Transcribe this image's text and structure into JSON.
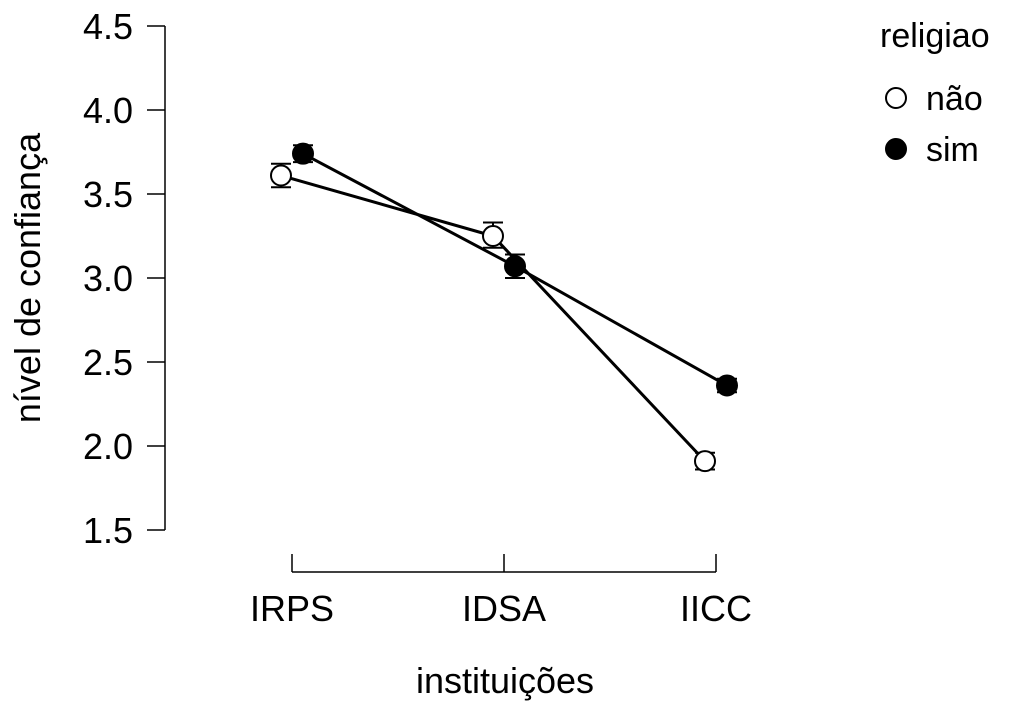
{
  "chart_data": {
    "type": "line",
    "xlabel": "instituições",
    "ylabel": "nível de confiança",
    "categories": [
      "IRPS",
      "IDSA",
      "IICC"
    ],
    "ylim": [
      1.5,
      4.5
    ],
    "yticks": [
      "1.5",
      "2.0",
      "2.5",
      "3.0",
      "3.5",
      "4.0",
      "4.5"
    ],
    "grid": false,
    "legend": {
      "title": "religiao",
      "placement": "top-right"
    },
    "series": [
      {
        "name": "não",
        "marker": "open-circle",
        "fill": "#ffffff",
        "values": [
          3.61,
          3.25,
          1.91
        ],
        "error_low": [
          3.54,
          3.18,
          1.86
        ],
        "error_high": [
          3.68,
          3.33,
          1.96
        ]
      },
      {
        "name": "sim",
        "marker": "filled-circle",
        "fill": "#000000",
        "values": [
          3.74,
          3.07,
          2.36
        ],
        "error_low": [
          3.69,
          3.0,
          2.32
        ],
        "error_high": [
          3.79,
          3.14,
          2.4
        ]
      }
    ]
  }
}
